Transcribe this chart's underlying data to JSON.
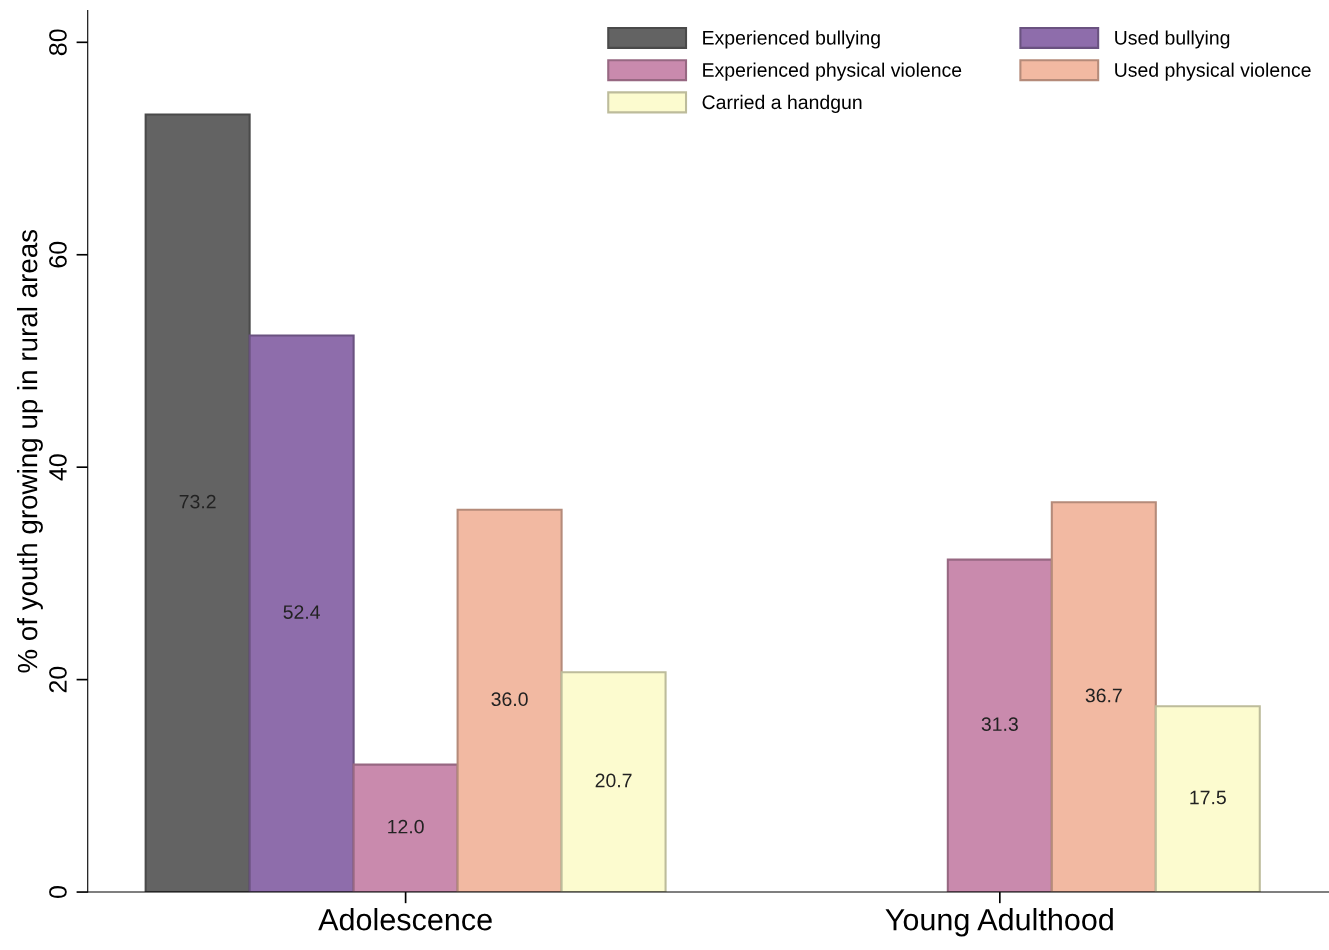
{
  "chart_data": {
    "type": "bar",
    "ylabel": "% of youth growing up in rural areas",
    "categories": [
      "Adolescence",
      "Young Adulthood"
    ],
    "series": [
      {
        "name": "Experienced bullying",
        "color": "#636363",
        "values": [
          73.2,
          null
        ]
      },
      {
        "name": "Used bullying",
        "color": "#8e6dab",
        "values": [
          52.4,
          null
        ]
      },
      {
        "name": "Experienced physical violence",
        "color": "#c98aad",
        "values": [
          12.0,
          31.3
        ],
        "value_labels": [
          "12.0",
          "31.3"
        ]
      },
      {
        "name": "Used physical violence",
        "color": "#f2b9a2",
        "values": [
          36.0,
          36.7
        ],
        "value_labels": [
          "36.0",
          "36.7"
        ]
      },
      {
        "name": "Carried a handgun",
        "color": "#fcfbcf",
        "values": [
          20.7,
          17.5
        ]
      }
    ],
    "ylim": [
      0,
      83
    ],
    "yticks": [
      0,
      20,
      40,
      60,
      80
    ],
    "data_labels": true,
    "grid": false,
    "legend": "top right"
  }
}
